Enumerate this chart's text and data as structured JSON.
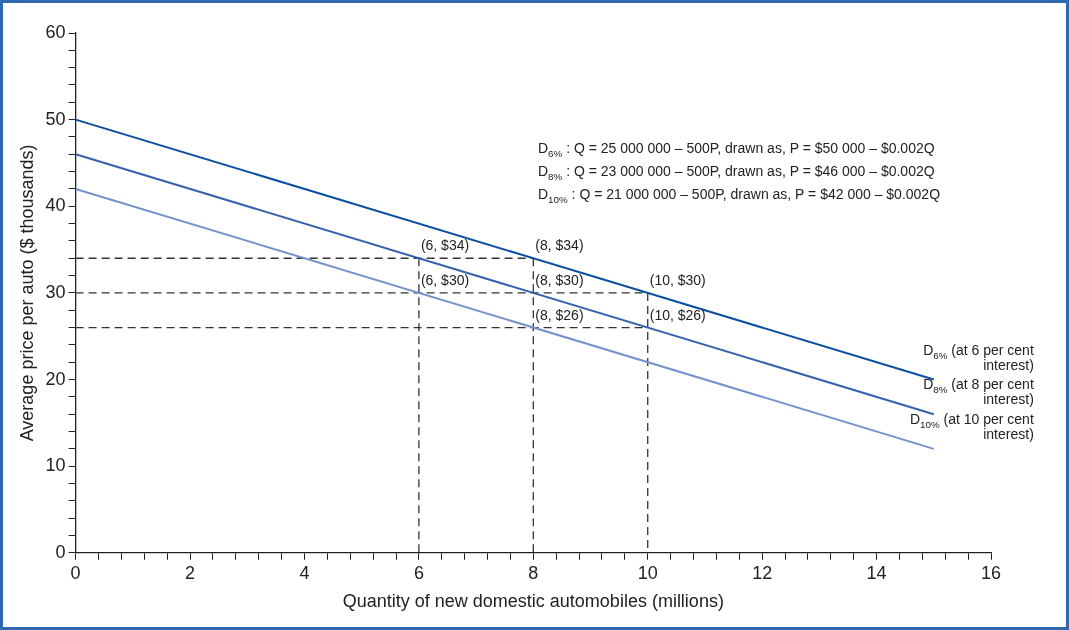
{
  "chart_data": {
    "type": "line",
    "xlabel": "Quantity of new domestic automobiles (millions)",
    "ylabel": "Average price per auto ($ thousands)",
    "xlim": [
      0,
      16
    ],
    "ylim": [
      0,
      60
    ],
    "xticks": [
      0,
      {
        "value": 0.4,
        "label": null
      },
      {
        "value": 0.8,
        "label": null
      },
      {
        "value": 1.2,
        "label": null
      },
      {
        "value": 1.6,
        "label": null
      },
      2,
      {
        "value": 2.4,
        "label": null
      },
      {
        "value": 2.8,
        "label": null
      },
      {
        "value": 3.2,
        "label": null
      },
      {
        "value": 3.6,
        "label": null
      },
      4,
      {
        "value": 4.4,
        "label": null
      },
      {
        "value": 4.8,
        "label": null
      },
      {
        "value": 5.2,
        "label": null
      },
      {
        "value": 5.6,
        "label": null
      },
      6,
      {
        "value": 6.4,
        "label": null
      },
      {
        "value": 6.8,
        "label": null
      },
      {
        "value": 7.2,
        "label": null
      },
      {
        "value": 7.6,
        "label": null
      },
      8,
      {
        "value": 8.4,
        "label": null
      },
      {
        "value": 8.8,
        "label": null
      },
      {
        "value": 9.2,
        "label": null
      },
      {
        "value": 9.6,
        "label": null
      },
      10,
      {
        "value": 10.4,
        "label": null
      },
      {
        "value": 10.8,
        "label": null
      },
      {
        "value": 11.2,
        "label": null
      },
      {
        "value": 11.6,
        "label": null
      },
      12,
      {
        "value": 12.4,
        "label": null
      },
      {
        "value": 12.8,
        "label": null
      },
      {
        "value": 13.2,
        "label": null
      },
      {
        "value": 13.6,
        "label": null
      },
      14,
      {
        "value": 14.4,
        "label": null
      },
      {
        "value": 14.8,
        "label": null
      },
      {
        "value": 15.2,
        "label": null
      },
      {
        "value": 15.6,
        "label": null
      },
      16
    ],
    "yticks": [
      0,
      {
        "value": 2,
        "label": null
      },
      {
        "value": 4,
        "label": null
      },
      {
        "value": 6,
        "label": null
      },
      {
        "value": 8,
        "label": null
      },
      10,
      {
        "value": 12,
        "label": null
      },
      {
        "value": 14,
        "label": null
      },
      {
        "value": 16,
        "label": null
      },
      {
        "value": 18,
        "label": null
      },
      20,
      {
        "value": 22,
        "label": null
      },
      {
        "value": 24,
        "label": null
      },
      {
        "value": 26,
        "label": null
      },
      {
        "value": 28,
        "label": null
      },
      30,
      {
        "value": 32,
        "label": null
      },
      {
        "value": 34,
        "label": null
      },
      {
        "value": 36,
        "label": null
      },
      {
        "value": 38,
        "label": null
      },
      40,
      {
        "value": 42,
        "label": null
      },
      {
        "value": 44,
        "label": null
      },
      {
        "value": 46,
        "label": null
      },
      {
        "value": 48,
        "label": null
      },
      50,
      {
        "value": 52,
        "label": null
      },
      {
        "value": 54,
        "label": null
      },
      {
        "value": 56,
        "label": null
      },
      {
        "value": 58,
        "label": null
      },
      60
    ],
    "grid": false,
    "legend": false,
    "marker": "none",
    "line_style": "solid",
    "series": [
      {
        "name": "D$_{6%}$ (at 6 per cent interest)",
        "color": "#0b4fa0",
        "x": [
          0,
          15
        ],
        "values": [
          50,
          20
        ]
      },
      {
        "name": "D$_{8%}$ (at 8 per cent interest)",
        "color": "#3561ad",
        "x": [
          0,
          15
        ],
        "values": [
          46,
          16
        ]
      },
      {
        "name": "D$_{10%}$ (at 10 per cent interest)",
        "color": "#7592cf",
        "x": [
          0,
          15
        ],
        "values": [
          42,
          12
        ]
      },
      {
        "color": "#333333",
        "line_style": "dashed",
        "x": [
          0,
          8
        ],
        "values": [
          34,
          34
        ]
      },
      {
        "color": "#333333",
        "line_style": "dashed",
        "x": [
          0,
          10
        ],
        "values": [
          30,
          30
        ]
      },
      {
        "color": "#333333",
        "line_style": "dashed",
        "x": [
          0,
          10
        ],
        "values": [
          26,
          26
        ]
      },
      {
        "color": "#333333",
        "line_style": "dashed",
        "x": [
          6,
          6
        ],
        "values": [
          34,
          0
        ]
      },
      {
        "color": "#333333",
        "line_style": "dashed",
        "x": [
          8,
          8
        ],
        "values": [
          34,
          0
        ]
      },
      {
        "color": "#333333",
        "line_style": "dashed",
        "x": [
          10,
          10
        ],
        "values": [
          30,
          0
        ]
      }
    ],
    "annotations": [
      "D$_{6%}$ : Q = 25 000 000 – 500P, drawn as, P = $50 000 – $0.002Q",
      "D$_{8%}$ : Q = 23 000 000 – 500P, drawn as, P = $46 000 – $0.002Q",
      "D$_{10%}$ : Q = 21 000 000 – 500P, drawn as, P = $42 000 – $0.002Q",
      {
        "text": "(6, $34)",
        "x": 6,
        "y": 34
      },
      {
        "text": "(8, $34)",
        "x": 8,
        "y": 34
      },
      {
        "text": "(6, $30)",
        "x": 6,
        "y": 30
      },
      {
        "text": "(8, $30)",
        "x": 8,
        "y": 30
      },
      {
        "text": "(10, $30)",
        "x": 10,
        "y": 30
      },
      {
        "text": "(8, $26)",
        "x": 8,
        "y": 26
      },
      {
        "text": "(10, $26)",
        "x": 10,
        "y": 26
      }
    ]
  }
}
